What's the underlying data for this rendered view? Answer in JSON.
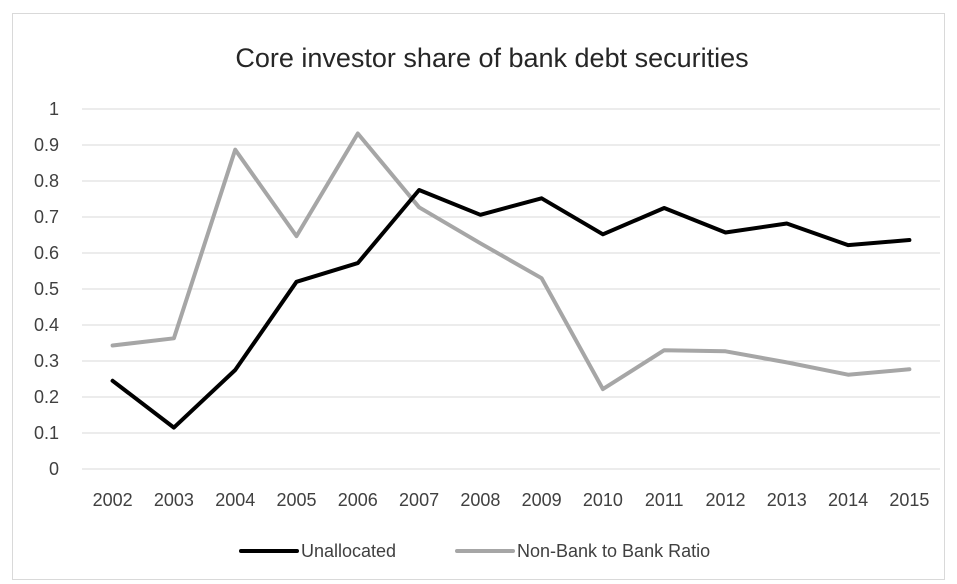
{
  "chart_data": {
    "type": "line",
    "title": "Core investor share of bank debt securities",
    "xlabel": "",
    "ylabel": "",
    "categories": [
      "2002",
      "2003",
      "2004",
      "2005",
      "2006",
      "2007",
      "2008",
      "2009",
      "2010",
      "2011",
      "2012",
      "2013",
      "2014",
      "2015"
    ],
    "ylim": [
      0,
      1
    ],
    "yticks": [
      "0",
      "0.1",
      "0.2",
      "0.3",
      "0.4",
      "0.5",
      "0.6",
      "0.7",
      "0.8",
      "0.9",
      "1"
    ],
    "grid": true,
    "legend_position": "bottom",
    "series": [
      {
        "name": "Unallocated",
        "color": "#000000",
        "values": [
          0.245,
          0.115,
          0.275,
          0.52,
          0.572,
          0.775,
          0.706,
          0.752,
          0.652,
          0.725,
          0.657,
          0.682,
          0.622,
          0.636
        ]
      },
      {
        "name": "Non-Bank to Bank Ratio",
        "color": "#a6a6a6",
        "values": [
          0.343,
          0.363,
          0.887,
          0.647,
          0.932,
          0.727,
          0.627,
          0.53,
          0.222,
          0.33,
          0.327,
          0.296,
          0.262,
          0.277
        ]
      }
    ]
  }
}
